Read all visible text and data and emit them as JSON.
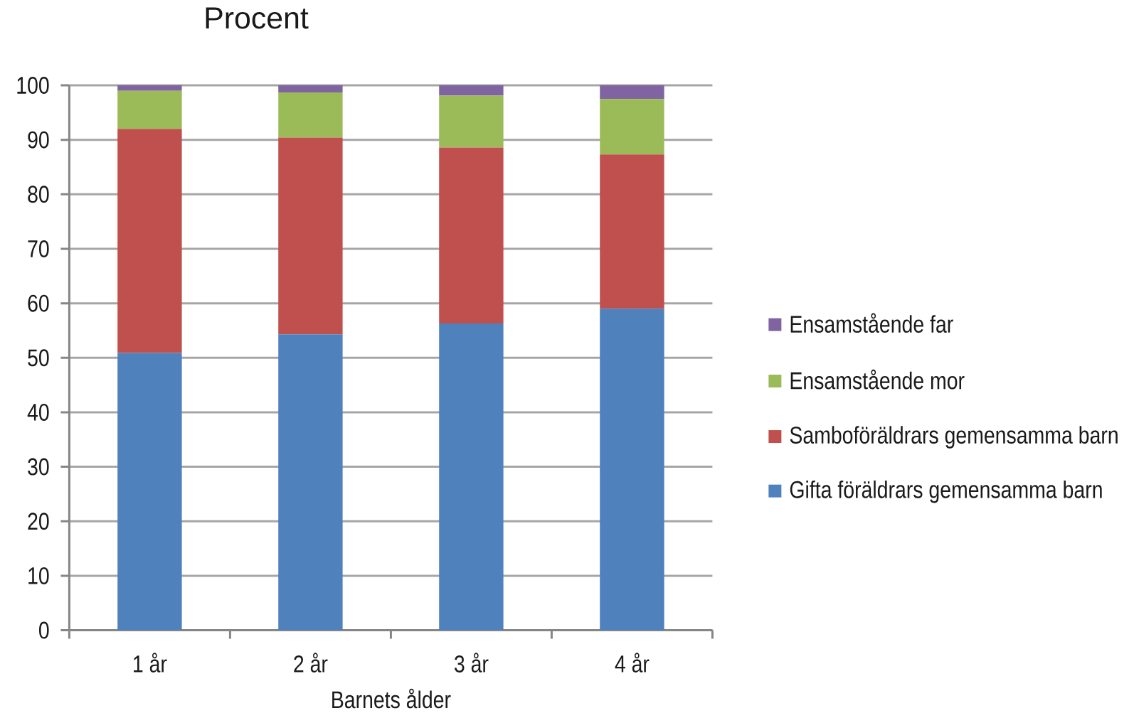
{
  "chart_data": {
    "type": "bar",
    "stacked": true,
    "title": "Procent",
    "xlabel": "Barnets ålder",
    "categories": [
      "1 år",
      "2 år",
      "3 år",
      "4 år"
    ],
    "series": [
      {
        "name": "Gifta föräldrars gemensamma barn",
        "color": "#4f81bd",
        "values": [
          50.9,
          54.3,
          56.3,
          59.0
        ]
      },
      {
        "name": "Samboföräldrars gemensamma barn",
        "color": "#c0504d",
        "values": [
          41.1,
          36.1,
          32.3,
          28.3
        ]
      },
      {
        "name": "Ensamstående mor",
        "color": "#9bbb59",
        "values": [
          7.0,
          8.3,
          9.5,
          10.2
        ]
      },
      {
        "name": "Ensamstående far",
        "color": "#8064a2",
        "values": [
          1.0,
          1.3,
          1.9,
          2.5
        ]
      }
    ],
    "ylim": [
      0,
      100
    ],
    "yticks": [
      0,
      10,
      20,
      30,
      40,
      50,
      60,
      70,
      80,
      90,
      100
    ],
    "grid": "y",
    "legend": "right"
  }
}
